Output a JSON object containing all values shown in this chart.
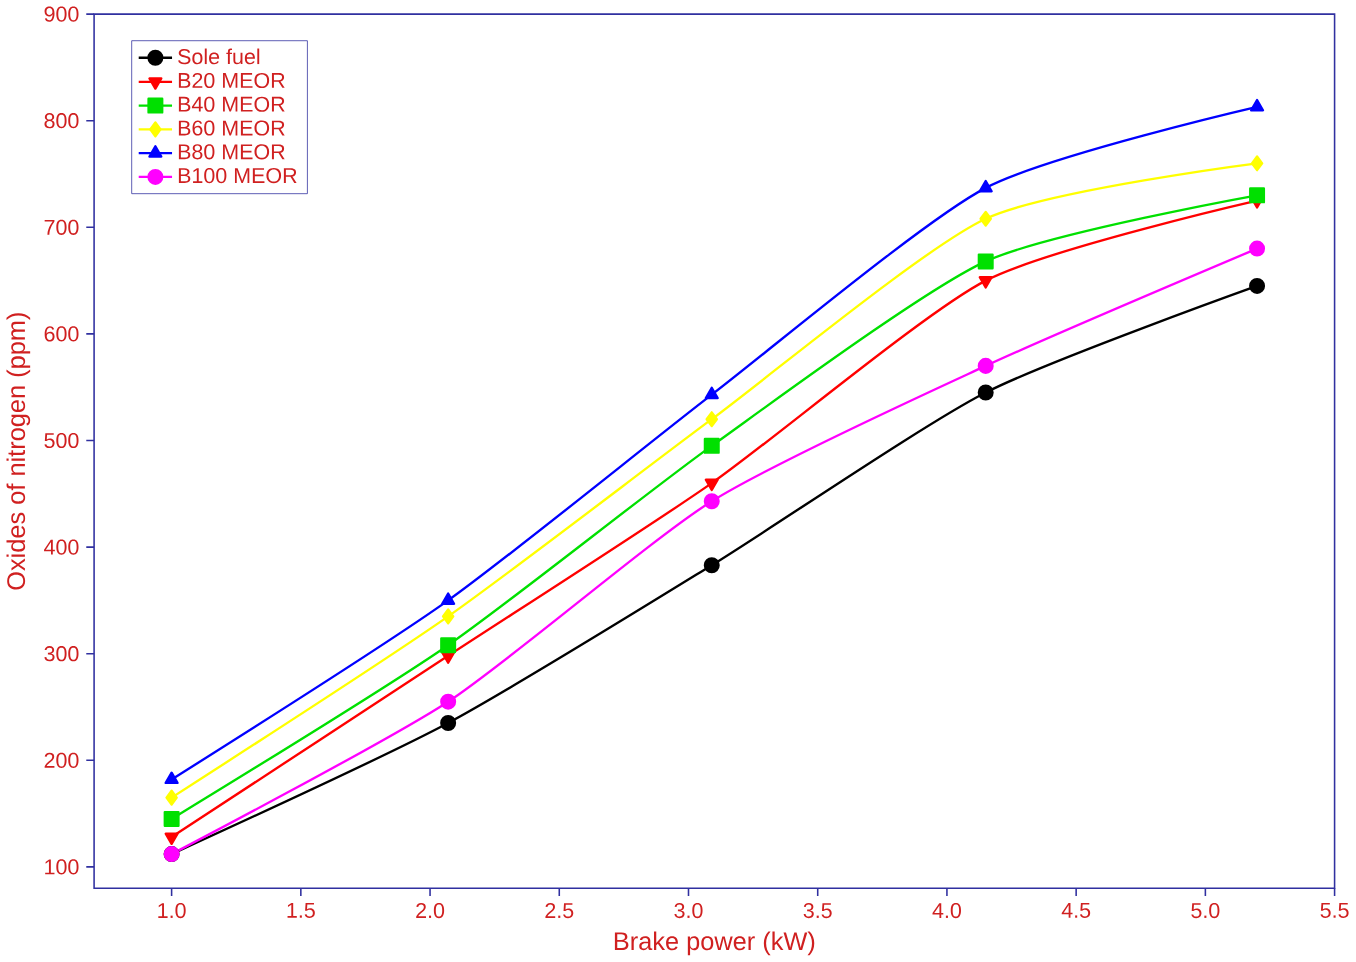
{
  "chart_data": {
    "type": "line",
    "xlabel": "Brake power (kW)",
    "ylabel": "Oxides of nitrogen (ppm)",
    "x": [
      1.0,
      2.07,
      3.09,
      4.15,
      5.2
    ],
    "series": [
      {
        "name": "Sole fuel",
        "color": "#000000",
        "marker": "circle",
        "values": [
          112,
          235,
          383,
          545,
          645
        ]
      },
      {
        "name": "B20 MEOR",
        "color": "#ff0000",
        "marker": "triangle-down",
        "values": [
          128,
          298,
          460,
          650,
          725
        ]
      },
      {
        "name": "B40 MEOR",
        "color": "#00e000",
        "marker": "square",
        "values": [
          145,
          308,
          495,
          668,
          730
        ]
      },
      {
        "name": "B60 MEOR",
        "color": "#ffff00",
        "marker": "diamond",
        "values": [
          165,
          335,
          520,
          708,
          760
        ]
      },
      {
        "name": "B80 MEOR",
        "color": "#0000ff",
        "marker": "triangle",
        "values": [
          182,
          350,
          543,
          737,
          813
        ]
      },
      {
        "name": "B100 MEOR",
        "color": "#ff00ff",
        "marker": "circle",
        "values": [
          112,
          255,
          443,
          570,
          680
        ]
      }
    ],
    "xlim": [
      0.7,
      5.5
    ],
    "ylim": [
      80,
      900
    ],
    "xticks": [
      {
        "value": 1,
        "label": "1.0"
      },
      1.5,
      {
        "value": 2,
        "label": "2.0"
      },
      2.5,
      {
        "value": 3,
        "label": "3.0"
      },
      3.5,
      {
        "value": 4,
        "label": "4.0"
      },
      4.5,
      {
        "value": 5,
        "label": "5.0"
      },
      5.5
    ],
    "yticks": [
      100,
      200,
      300,
      400,
      500,
      600,
      700,
      800,
      900
    ],
    "legend": "top left",
    "grid": false,
    "line_style": "solid"
  }
}
